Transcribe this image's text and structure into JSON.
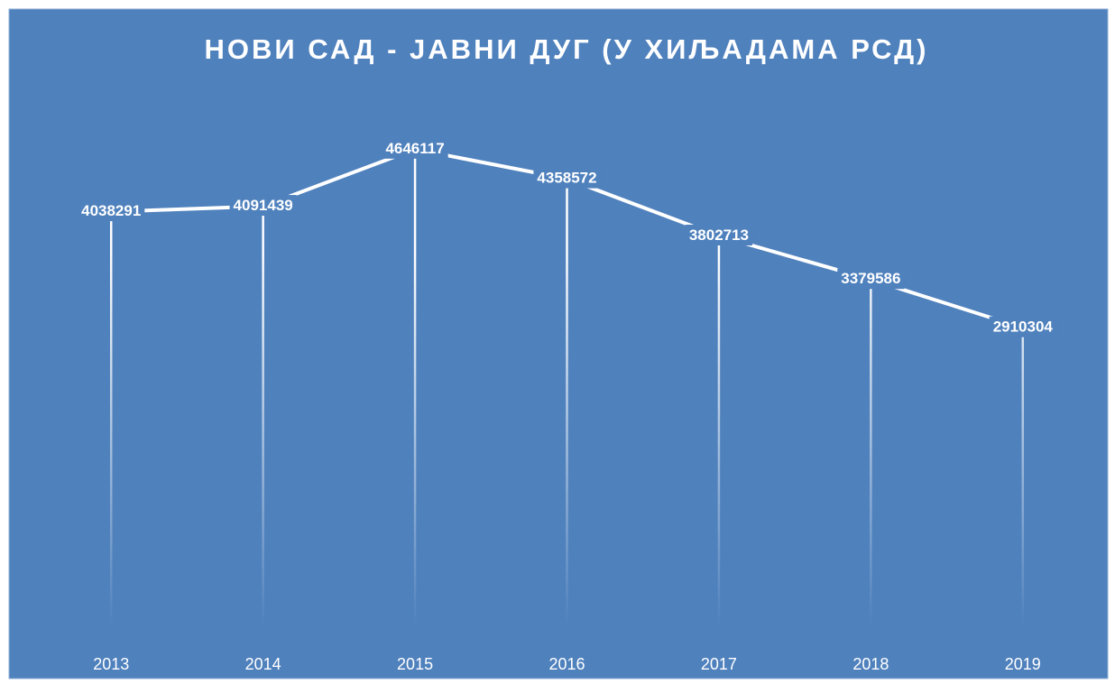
{
  "chart_data": {
    "type": "line",
    "title": "НОВИ САД - ЈАВНИ ДУГ (У ХИЉАДАМА РСД)",
    "categories": [
      "2013",
      "2014",
      "2015",
      "2016",
      "2017",
      "2018",
      "2019"
    ],
    "values": [
      4038291,
      4091439,
      4646117,
      4358572,
      3802713,
      3379586,
      2910304
    ],
    "color": "#ffffff",
    "drop_lines": true,
    "ylim": [
      0,
      5000000
    ]
  }
}
